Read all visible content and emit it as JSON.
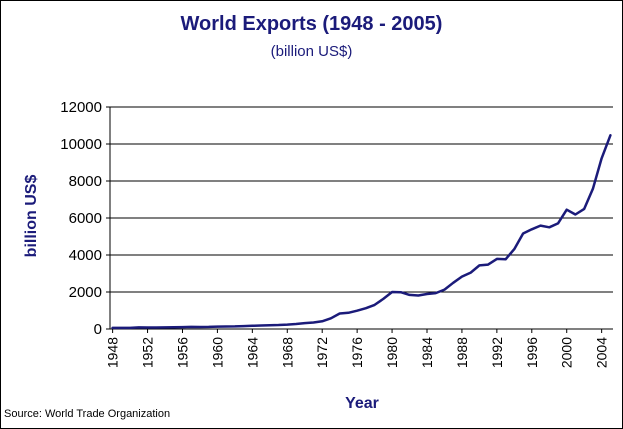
{
  "chart_data": {
    "type": "line",
    "title": "World Exports (1948 - 2005)",
    "subtitle": "(billion US$)",
    "xlabel": "Year",
    "ylabel": "billion US$",
    "ylim": [
      0,
      12000
    ],
    "yticks": [
      0,
      2000,
      4000,
      6000,
      8000,
      10000,
      12000
    ],
    "xlim": [
      1948,
      2005
    ],
    "xticks": [
      1948,
      1952,
      1956,
      1960,
      1964,
      1968,
      1972,
      1976,
      1980,
      1984,
      1988,
      1992,
      1996,
      2000,
      2004
    ],
    "grid": "horizontal",
    "legend": "none",
    "line_color": "#1b1b7a",
    "x": [
      1948,
      1949,
      1950,
      1951,
      1952,
      1953,
      1954,
      1955,
      1956,
      1957,
      1958,
      1959,
      1960,
      1961,
      1962,
      1963,
      1964,
      1965,
      1966,
      1967,
      1968,
      1969,
      1970,
      1971,
      1972,
      1973,
      1974,
      1975,
      1976,
      1977,
      1978,
      1979,
      1980,
      1981,
      1982,
      1983,
      1984,
      1985,
      1986,
      1987,
      1988,
      1989,
      1990,
      1991,
      1992,
      1993,
      1994,
      1995,
      1996,
      1997,
      1998,
      1999,
      2000,
      2001,
      2002,
      2003,
      2004,
      2005
    ],
    "series": [
      {
        "values": [
          58,
          59,
          61,
          84,
          81,
          83,
          86,
          93,
          103,
          112,
          108,
          116,
          130,
          135,
          142,
          157,
          175,
          190,
          205,
          215,
          240,
          272,
          317,
          350,
          418,
          580,
          840,
          875,
          990,
          1125,
          1300,
          1625,
          2000,
          1990,
          1845,
          1810,
          1890,
          1940,
          2130,
          2500,
          2830,
          3050,
          3440,
          3480,
          3790,
          3770,
          4320,
          5160,
          5390,
          5590,
          5500,
          5710,
          6450,
          6190,
          6490,
          7580,
          9220,
          10470
        ]
      }
    ]
  },
  "source": "Source: World Trade Organization"
}
